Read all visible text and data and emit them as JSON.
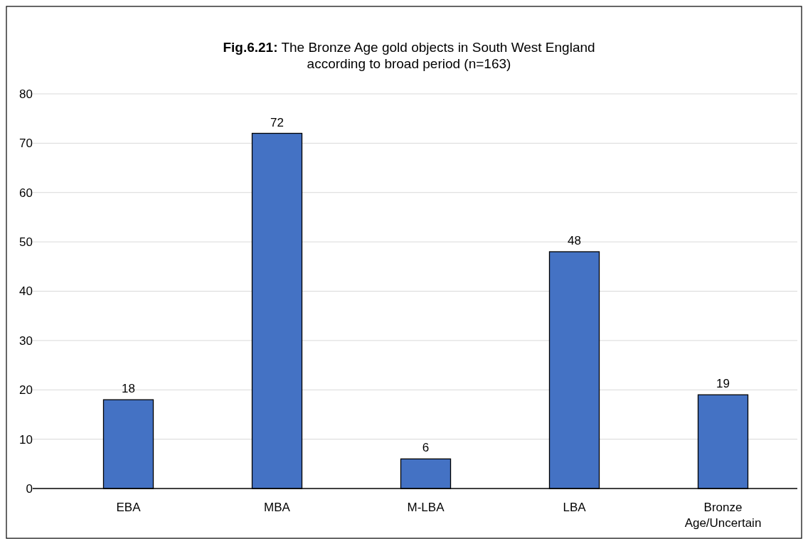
{
  "chart_data": {
    "type": "bar",
    "title": "Fig.6.21: The Bronze Age gold objects in South West England according to broad period (n=163)",
    "categories": [
      "EBA",
      "MBA",
      "M-LBA",
      "LBA",
      "Bronze Age/Uncertain"
    ],
    "values": [
      18,
      72,
      6,
      48,
      19
    ],
    "color": "#4472c4",
    "ylim": [
      0,
      80
    ],
    "yticks": [
      0,
      10,
      20,
      30,
      40,
      50,
      60,
      70,
      80
    ],
    "grid": "y",
    "data_labels": true
  }
}
